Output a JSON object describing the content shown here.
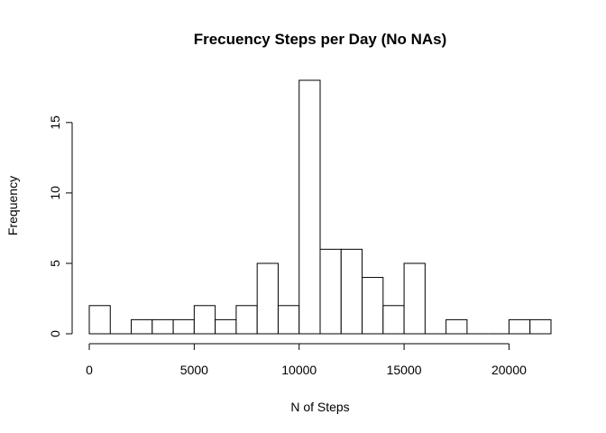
{
  "chart_data": {
    "type": "bar",
    "title": "Frecuency Steps per Day (No NAs)",
    "xlabel": "N of Steps",
    "ylabel": "Frequency",
    "bin_width": 1000,
    "bins": [
      {
        "x_start": 0,
        "x_end": 1000,
        "count": 2
      },
      {
        "x_start": 1000,
        "x_end": 2000,
        "count": 0
      },
      {
        "x_start": 2000,
        "x_end": 3000,
        "count": 1
      },
      {
        "x_start": 3000,
        "x_end": 4000,
        "count": 1
      },
      {
        "x_start": 4000,
        "x_end": 5000,
        "count": 1
      },
      {
        "x_start": 5000,
        "x_end": 6000,
        "count": 2
      },
      {
        "x_start": 6000,
        "x_end": 7000,
        "count": 1
      },
      {
        "x_start": 7000,
        "x_end": 8000,
        "count": 2
      },
      {
        "x_start": 8000,
        "x_end": 9000,
        "count": 5
      },
      {
        "x_start": 9000,
        "x_end": 10000,
        "count": 2
      },
      {
        "x_start": 10000,
        "x_end": 11000,
        "count": 18
      },
      {
        "x_start": 11000,
        "x_end": 12000,
        "count": 6
      },
      {
        "x_start": 12000,
        "x_end": 13000,
        "count": 6
      },
      {
        "x_start": 13000,
        "x_end": 14000,
        "count": 4
      },
      {
        "x_start": 14000,
        "x_end": 15000,
        "count": 2
      },
      {
        "x_start": 15000,
        "x_end": 16000,
        "count": 5
      },
      {
        "x_start": 16000,
        "x_end": 17000,
        "count": 0
      },
      {
        "x_start": 17000,
        "x_end": 18000,
        "count": 1
      },
      {
        "x_start": 18000,
        "x_end": 19000,
        "count": 0
      },
      {
        "x_start": 19000,
        "x_end": 20000,
        "count": 0
      },
      {
        "x_start": 20000,
        "x_end": 21000,
        "count": 1
      },
      {
        "x_start": 21000,
        "x_end": 22000,
        "count": 1
      }
    ],
    "xlim": [
      0,
      22000
    ],
    "ylim": [
      0,
      18
    ],
    "x_ticks": [
      0,
      5000,
      10000,
      15000,
      20000
    ],
    "x_tick_labels": [
      "0",
      "5000",
      "10000",
      "15000",
      "20000"
    ],
    "y_ticks": [
      0,
      5,
      10,
      15
    ],
    "y_tick_labels": [
      "0",
      "5",
      "10",
      "15"
    ],
    "grid": false,
    "legend": "none",
    "colors": {
      "bar_fill": "#ffffff",
      "bar_stroke": "#000000"
    }
  }
}
